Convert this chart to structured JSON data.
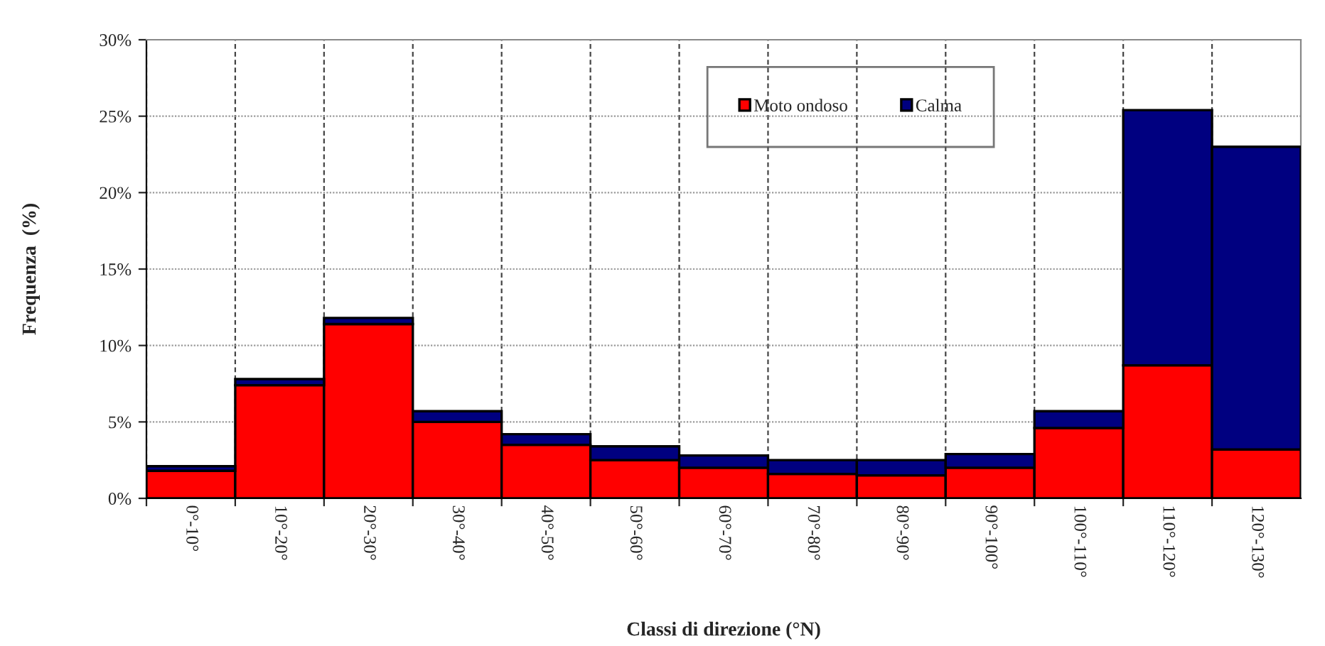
{
  "chart_data": {
    "type": "bar",
    "stacked": true,
    "xlabel": "Classi di direzione (°N)",
    "ylabel": "Frequenza  (%)",
    "categories": [
      "0°-10°",
      "10°-20°",
      "20°-30°",
      "30°-40°",
      "40°-50°",
      "50°-60°",
      "60°-70°",
      "70°-80°",
      "80°-90°",
      "90°-100°",
      "100°-110°",
      "110°-120°",
      "120°-130°"
    ],
    "series": [
      {
        "name": "Moto ondoso",
        "color": "#ff0000",
        "values": [
          1.8,
          7.4,
          11.4,
          5.0,
          3.5,
          2.5,
          2.0,
          1.6,
          1.5,
          2.0,
          4.6,
          8.7,
          3.2
        ]
      },
      {
        "name": "Calma",
        "color": "#000080",
        "values": [
          0.3,
          0.4,
          0.4,
          0.7,
          0.7,
          0.9,
          0.8,
          0.9,
          1.0,
          0.9,
          1.1,
          16.7,
          19.8
        ]
      }
    ],
    "ylim": [
      0,
      30
    ],
    "yticks": [
      {
        "value": 0,
        "label": "0%"
      },
      {
        "value": 5,
        "label": "5%"
      },
      {
        "value": 10,
        "label": "10%"
      },
      {
        "value": 15,
        "label": "15%"
      },
      {
        "value": 20,
        "label": "20%"
      },
      {
        "value": 25,
        "label": "25%"
      },
      {
        "value": 30,
        "label": "30%"
      }
    ],
    "grid": true,
    "legend": "top"
  }
}
